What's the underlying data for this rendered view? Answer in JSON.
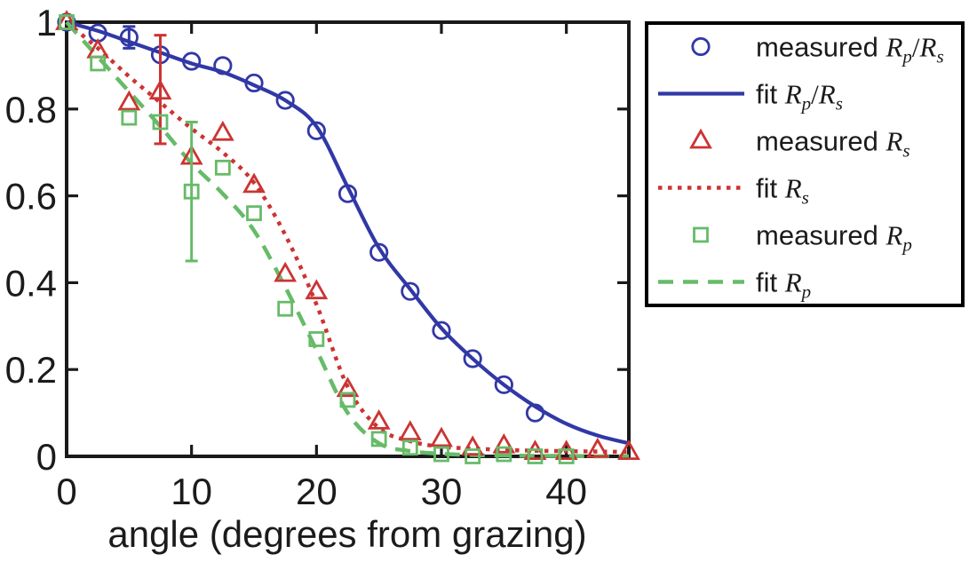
{
  "figure": {
    "background": "#ffffff",
    "title": "",
    "x_tick_values": [
      0,
      10,
      20,
      30,
      40
    ],
    "x_tick_labels": [
      "0",
      "10",
      "20",
      "30",
      "40"
    ],
    "y_tick_values": [
      0,
      0.2,
      0.4,
      0.6,
      0.8,
      1
    ],
    "y_tick_labels": [
      "0",
      "0.2",
      "0.4",
      "0.6",
      "0.8",
      "1"
    ]
  },
  "colors": {
    "blue": "#3138a6",
    "red": "#cb3432",
    "green": "#66bb68",
    "axis": "#1a1a1a",
    "text": "#1b1b1b",
    "legend_border": "#000000"
  },
  "chart_data": {
    "type": "line+scatter",
    "title": "",
    "xlabel": "angle (degrees from grazing)",
    "ylabel": "",
    "xlim": [
      0,
      45
    ],
    "ylim": [
      0,
      1
    ],
    "grid": false,
    "legend_position": "outside-right",
    "series": [
      {
        "name": "measured Rp/Rs",
        "kind": "scatter",
        "marker": "circle",
        "color_key": "blue",
        "x": [
          0,
          2.5,
          5,
          7.5,
          10,
          12.5,
          15,
          17.5,
          20,
          22.5,
          25,
          27.5,
          30,
          32.5,
          35,
          37.5
        ],
        "y": [
          1.0,
          0.975,
          0.965,
          0.925,
          0.91,
          0.9,
          0.86,
          0.82,
          0.75,
          0.605,
          0.47,
          0.38,
          0.29,
          0.225,
          0.165,
          0.1
        ],
        "error_bars": [
          {
            "x": 5,
            "y": 0.965,
            "lo": 0.94,
            "hi": 0.99
          }
        ]
      },
      {
        "name": "fit Rp/Rs",
        "kind": "line",
        "dash": "solid",
        "color_key": "blue",
        "x": [
          0,
          2.5,
          5,
          7.5,
          10,
          12.5,
          15,
          17.5,
          20,
          22.5,
          25,
          27.5,
          30,
          32.5,
          35,
          37.5,
          40,
          42.5,
          45
        ],
        "y": [
          1.0,
          0.98,
          0.955,
          0.93,
          0.905,
          0.885,
          0.855,
          0.82,
          0.76,
          0.62,
          0.48,
          0.385,
          0.295,
          0.225,
          0.165,
          0.115,
          0.075,
          0.048,
          0.03
        ]
      },
      {
        "name": "measured Rs",
        "kind": "scatter",
        "marker": "triangle",
        "color_key": "red",
        "x": [
          0,
          2.5,
          5,
          7.5,
          10,
          12.5,
          15,
          17.5,
          20,
          22.5,
          25,
          27.5,
          30,
          32.5,
          35,
          37.5,
          40,
          42.5,
          45
        ],
        "y": [
          1.0,
          0.935,
          0.815,
          0.84,
          0.69,
          0.745,
          0.625,
          0.42,
          0.38,
          0.155,
          0.08,
          0.055,
          0.04,
          0.02,
          0.025,
          0.01,
          0.01,
          0.015,
          0.01
        ],
        "error_bars": [
          {
            "x": 7.5,
            "y": 0.84,
            "lo": 0.72,
            "hi": 0.97
          }
        ]
      },
      {
        "name": "fit Rs",
        "kind": "line",
        "dash": "dotted",
        "color_key": "red",
        "x": [
          0,
          2.5,
          5,
          7.5,
          10,
          12.5,
          15,
          17.5,
          20,
          22.5,
          25,
          27.5,
          30,
          32.5,
          35,
          37.5,
          40,
          42.5,
          45
        ],
        "y": [
          1.0,
          0.94,
          0.875,
          0.815,
          0.755,
          0.7,
          0.63,
          0.51,
          0.35,
          0.16,
          0.065,
          0.035,
          0.022,
          0.018,
          0.015,
          0.013,
          0.012,
          0.011,
          0.01
        ]
      },
      {
        "name": "measured Rp",
        "kind": "scatter",
        "marker": "square",
        "color_key": "green",
        "x": [
          0,
          2.5,
          5,
          7.5,
          10,
          12.5,
          15,
          17.5,
          20,
          22.5,
          25,
          27.5,
          30,
          32.5,
          35,
          37.5,
          40
        ],
        "y": [
          1.0,
          0.905,
          0.78,
          0.77,
          0.61,
          0.665,
          0.56,
          0.34,
          0.27,
          0.13,
          0.04,
          0.02,
          0.005,
          0.0,
          0.005,
          0.0,
          0.0
        ],
        "error_bars": [
          {
            "x": 10,
            "y": 0.61,
            "lo": 0.45,
            "hi": 0.77
          }
        ]
      },
      {
        "name": "fit Rp",
        "kind": "line",
        "dash": "dashed",
        "color_key": "green",
        "x": [
          0,
          2.5,
          5,
          7.5,
          10,
          12.5,
          15,
          17.5,
          20,
          22.5,
          25,
          27.5,
          30,
          32.5,
          35,
          37.5,
          40,
          42.5,
          45
        ],
        "y": [
          1.0,
          0.92,
          0.84,
          0.76,
          0.675,
          0.605,
          0.52,
          0.39,
          0.245,
          0.1,
          0.03,
          0.012,
          0.006,
          0.003,
          0.002,
          0.001,
          0.001,
          0.0,
          0.0
        ]
      }
    ]
  },
  "legend": {
    "entries": [
      {
        "symbol": "circle",
        "color_key": "blue",
        "prefix": "measured ",
        "math": [
          [
            "R",
            "p"
          ],
          "/",
          [
            "R",
            "s"
          ]
        ]
      },
      {
        "symbol": "line-solid",
        "color_key": "blue",
        "prefix": "fit ",
        "math": [
          [
            "R",
            "p"
          ],
          "/",
          [
            "R",
            "s"
          ]
        ]
      },
      {
        "symbol": "triangle",
        "color_key": "red",
        "prefix": "measured ",
        "math": [
          [
            "R",
            "s"
          ]
        ]
      },
      {
        "symbol": "line-dotted",
        "color_key": "red",
        "prefix": "fit ",
        "math": [
          [
            "R",
            "s"
          ]
        ]
      },
      {
        "symbol": "square",
        "color_key": "green",
        "prefix": "measured ",
        "math": [
          [
            "R",
            "p"
          ]
        ]
      },
      {
        "symbol": "line-dashed",
        "color_key": "green",
        "prefix": "fit ",
        "math": [
          [
            "R",
            "p"
          ]
        ]
      }
    ]
  }
}
